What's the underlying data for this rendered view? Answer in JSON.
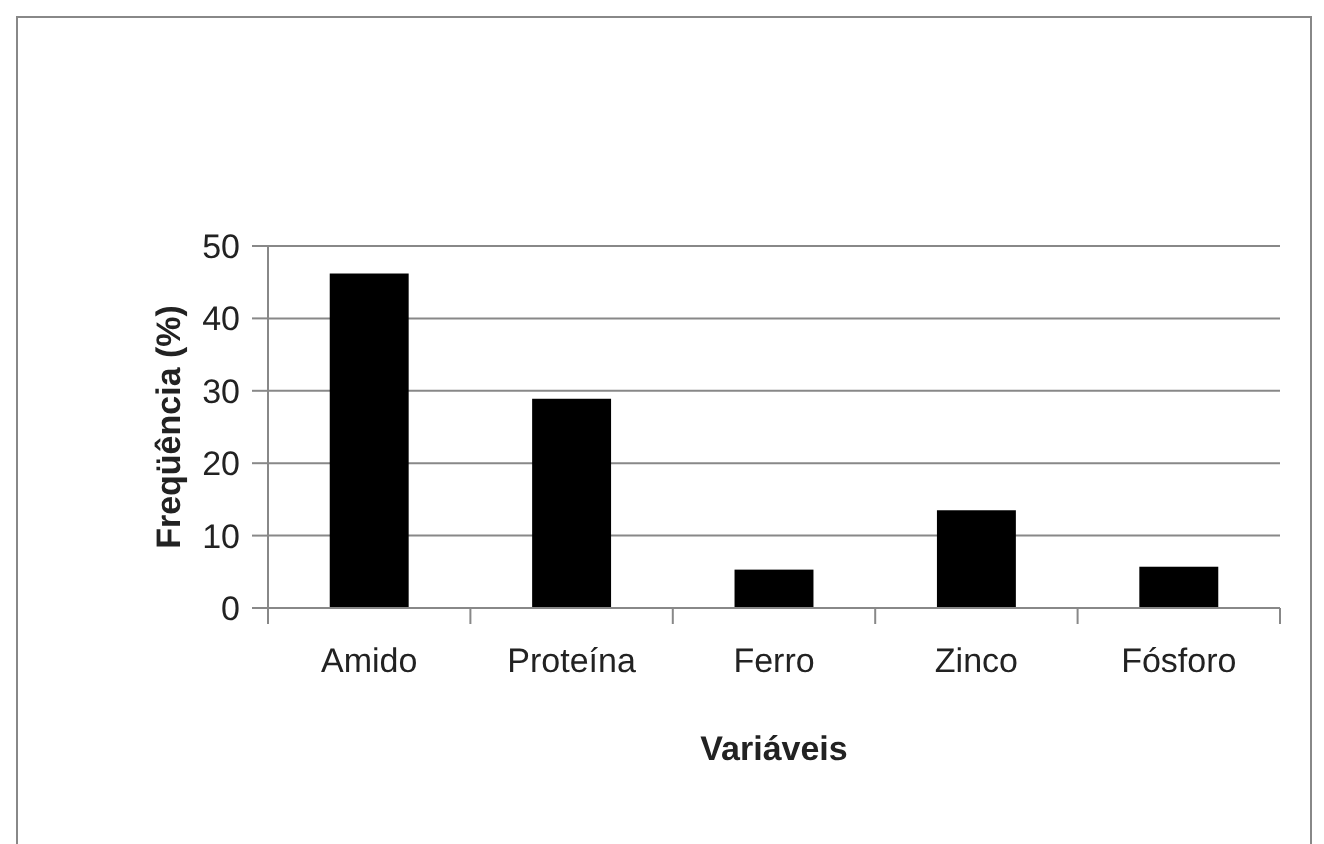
{
  "chart_data": {
    "type": "bar",
    "xlabel": "Variáveis",
    "ylabel": "Freqüência (%)",
    "categories": [
      "Amido",
      "Proteína",
      "Ferro",
      "Zinco",
      "Fósforo"
    ],
    "values": [
      46.2,
      28.9,
      5.3,
      13.5,
      5.7
    ],
    "color": "#000000",
    "ylim": [
      0,
      50
    ],
    "yticks": [
      0,
      10,
      20,
      30,
      40,
      50
    ],
    "grid": "y"
  }
}
